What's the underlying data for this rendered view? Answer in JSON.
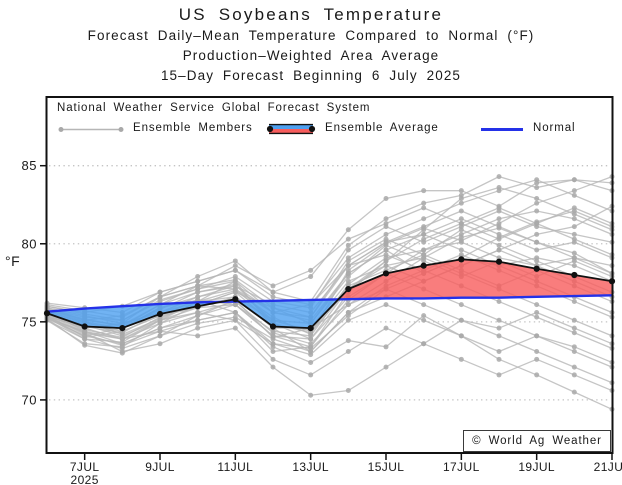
{
  "title": {
    "line1": "US Soybeans Temperature",
    "line2": "Forecast Daily–Mean Temperature Compared to Normal (°F)",
    "line3": "Production–Weighted Area Average",
    "line4": "15–Day Forecast Beginning 6 July 2025"
  },
  "legend": {
    "source_line": "National Weather Service Global Forecast System",
    "items": [
      {
        "label": "Ensemble Members",
        "marker": "gray-line-with-dots"
      },
      {
        "label": "Ensemble Average",
        "marker": "blue-red-band-black-dots"
      },
      {
        "label": "Normal",
        "marker": "blue-line"
      }
    ]
  },
  "watermark": "© World Ag Weather",
  "axes": {
    "y_label": "°F",
    "y_ticks": [
      85,
      80,
      75,
      70
    ],
    "x_ticks": [
      {
        "day": 7,
        "label": "7JUL",
        "sub": "2025"
      },
      {
        "day": 9,
        "label": "9JUL"
      },
      {
        "day": 11,
        "label": "11JUL"
      },
      {
        "day": 13,
        "label": "13JUL"
      },
      {
        "day": 15,
        "label": "15JUL"
      },
      {
        "day": 17,
        "label": "17JUL"
      },
      {
        "day": 19,
        "label": "19JUL"
      },
      {
        "day": 21,
        "label": "21JUL"
      }
    ]
  },
  "chart_data": {
    "type": "line",
    "title": "US Soybeans Temperature",
    "x_days": [
      6,
      7,
      8,
      9,
      10,
      11,
      12,
      13,
      14,
      15,
      16,
      17,
      18,
      19,
      20,
      21
    ],
    "x_unit": "date in July 2025",
    "ylabel": "°F",
    "ylim": [
      66.6,
      89.4
    ],
    "y_gridlines": [
      70,
      75,
      80,
      85
    ],
    "grid": "horizontal-dotted",
    "legend_position": "top-inside",
    "colors": {
      "ensemble_member": "#b6b6b6",
      "member_dot": "#a9a9a9",
      "ensemble_average": "#111111",
      "normal": "#2431e8",
      "fill_above_normal": "#f75d5d",
      "fill_below_normal": "#4da0f0",
      "fill_opacity": 0.8,
      "gridline": "#c4c4c4"
    },
    "series": [
      {
        "name": "Ensemble Average",
        "values": [
          75.55,
          74.7,
          74.6,
          75.5,
          76.0,
          76.45,
          74.7,
          74.6,
          77.1,
          78.1,
          78.6,
          79.0,
          78.85,
          78.4,
          78.0,
          77.6
        ]
      },
      {
        "name": "Normal",
        "values": [
          75.65,
          75.85,
          76.0,
          76.15,
          76.25,
          76.3,
          76.35,
          76.4,
          76.45,
          76.5,
          76.5,
          76.55,
          76.55,
          76.6,
          76.65,
          76.7
        ]
      }
    ],
    "members": [
      [
        75.6,
        75.0,
        74.2,
        75.2,
        76.3,
        77.0,
        75.3,
        74.2,
        78.3,
        80.0,
        81.0,
        80.2,
        81.3,
        82.6,
        83.4,
        84.3
      ],
      [
        75.4,
        74.2,
        73.5,
        74.4,
        75.1,
        75.6,
        73.4,
        72.4,
        73.8,
        73.4,
        75.4,
        74.1,
        72.6,
        71.6,
        70.5,
        69.4
      ],
      [
        75.2,
        73.5,
        73.0,
        74.1,
        75.4,
        76.4,
        74.0,
        74.6,
        76.1,
        77.6,
        79.1,
        80.4,
        81.0,
        80.1,
        79.4,
        78.1
      ],
      [
        76.0,
        75.5,
        75.1,
        76.4,
        77.1,
        77.6,
        75.6,
        75.1,
        78.1,
        79.6,
        78.1,
        79.1,
        80.4,
        81.4,
        82.1,
        81.1
      ],
      [
        75.4,
        74.0,
        74.4,
        75.4,
        76.4,
        75.6,
        73.1,
        73.4,
        76.4,
        78.1,
        77.1,
        76.1,
        75.1,
        74.1,
        73.4,
        72.4
      ],
      [
        75.9,
        75.1,
        74.8,
        76.1,
        76.9,
        77.3,
        76.1,
        75.6,
        78.6,
        80.1,
        80.6,
        81.6,
        80.6,
        79.6,
        80.1,
        79.1
      ],
      [
        75.6,
        74.8,
        74.1,
        75.1,
        75.9,
        76.1,
        74.4,
        74.1,
        77.4,
        79.1,
        79.6,
        80.1,
        79.1,
        78.6,
        77.6,
        76.6
      ],
      [
        75.1,
        73.9,
        73.3,
        74.1,
        74.9,
        75.3,
        73.9,
        73.1,
        75.6,
        76.6,
        77.6,
        78.6,
        79.6,
        80.6,
        81.1,
        82.4
      ],
      [
        76.2,
        75.9,
        75.6,
        76.9,
        77.6,
        78.3,
        76.6,
        76.1,
        79.1,
        80.6,
        81.6,
        82.6,
        83.4,
        84.1,
        83.1,
        82.1
      ],
      [
        75.5,
        74.5,
        74.0,
        75.3,
        76.1,
        76.9,
        74.9,
        74.3,
        77.1,
        78.6,
        79.1,
        78.1,
        77.1,
        76.1,
        75.1,
        74.1
      ],
      [
        75.8,
        75.3,
        75.1,
        76.3,
        77.1,
        77.9,
        76.3,
        75.9,
        79.6,
        81.1,
        80.1,
        81.1,
        82.1,
        81.1,
        80.6,
        80.1
      ],
      [
        75.3,
        74.3,
        73.9,
        74.9,
        75.6,
        76.3,
        74.3,
        73.6,
        76.1,
        77.1,
        78.1,
        79.1,
        78.6,
        77.6,
        76.6,
        75.6
      ],
      [
        75.8,
        75.0,
        74.6,
        75.9,
        76.6,
        77.1,
        75.1,
        74.9,
        78.1,
        79.6,
        80.6,
        79.6,
        78.6,
        79.1,
        78.6,
        77.6
      ],
      [
        75.4,
        74.6,
        74.9,
        75.6,
        76.3,
        76.6,
        74.6,
        74.6,
        77.6,
        78.6,
        77.6,
        78.6,
        79.6,
        78.6,
        79.1,
        78.6
      ],
      [
        75.6,
        74.4,
        73.6,
        74.6,
        75.4,
        76.1,
        74.1,
        73.9,
        76.6,
        78.1,
        79.6,
        80.6,
        81.6,
        82.1,
        81.6,
        80.6
      ],
      [
        76.1,
        75.7,
        75.3,
        76.6,
        77.3,
        77.7,
        75.9,
        75.3,
        78.6,
        80.1,
        81.1,
        82.1,
        81.1,
        80.1,
        79.1,
        78.1
      ],
      [
        75.2,
        74.1,
        73.6,
        74.6,
        75.1,
        75.6,
        73.6,
        73.3,
        75.4,
        77.1,
        76.1,
        75.1,
        74.6,
        75.6,
        74.6,
        73.6
      ],
      [
        76.0,
        75.6,
        76.0,
        76.9,
        77.6,
        78.3,
        76.9,
        76.3,
        79.9,
        81.6,
        82.6,
        83.1,
        84.3,
        83.6,
        84.1,
        83.9
      ],
      [
        75.3,
        74.7,
        74.3,
        75.6,
        76.6,
        77.3,
        75.6,
        75.3,
        78.9,
        80.3,
        79.3,
        80.9,
        79.9,
        78.9,
        77.9,
        76.9
      ],
      [
        75.7,
        74.9,
        74.6,
        75.9,
        76.4,
        76.1,
        74.1,
        73.4,
        76.9,
        78.9,
        80.3,
        81.3,
        80.3,
        81.3,
        82.3,
        81.3
      ],
      [
        75.1,
        73.6,
        73.4,
        74.9,
        76.1,
        76.9,
        75.9,
        74.9,
        77.9,
        79.9,
        78.9,
        77.9,
        78.9,
        77.9,
        78.9,
        77.9
      ],
      [
        75.9,
        75.4,
        74.9,
        76.6,
        77.9,
        78.9,
        76.9,
        77.9,
        80.9,
        82.9,
        83.4,
        83.4,
        82.4,
        83.9,
        84.1,
        83.4
      ],
      [
        75.5,
        74.3,
        73.1,
        73.6,
        74.6,
        75.1,
        72.6,
        71.6,
        73.1,
        74.6,
        73.6,
        72.6,
        71.6,
        72.6,
        71.6,
        70.6
      ],
      [
        75.3,
        73.9,
        73.7,
        75.1,
        76.3,
        77.6,
        74.6,
        73.1,
        75.6,
        77.3,
        78.3,
        77.3,
        76.3,
        75.3,
        74.3,
        73.3
      ],
      [
        75.7,
        75.2,
        74.7,
        76.1,
        77.3,
        78.6,
        77.3,
        78.3,
        80.3,
        81.3,
        82.3,
        81.3,
        82.3,
        81.3,
        80.3,
        79.3
      ],
      [
        75.2,
        74.4,
        73.9,
        74.4,
        74.1,
        74.6,
        72.1,
        70.3,
        70.6,
        72.1,
        73.6,
        75.1,
        74.1,
        73.1,
        72.1,
        71.1
      ],
      [
        75.8,
        75.1,
        75.4,
        76.6,
        77.3,
        77.1,
        75.6,
        76.1,
        78.6,
        79.3,
        78.3,
        79.3,
        78.3,
        77.3,
        76.3,
        75.3
      ],
      [
        75.5,
        74.8,
        74.4,
        75.4,
        75.9,
        76.6,
        75.1,
        74.4,
        77.3,
        78.3,
        79.3,
        78.3,
        77.3,
        78.3,
        77.3,
        76.3
      ],
      [
        75.3,
        74.1,
        74.6,
        75.8,
        76.9,
        77.4,
        74.9,
        73.9,
        77.1,
        78.9,
        80.9,
        82.9,
        83.6,
        82.9,
        81.9,
        80.9
      ],
      [
        75.6,
        74.6,
        73.9,
        75.1,
        75.6,
        75.1,
        73.6,
        72.9,
        75.1,
        76.1,
        75.1,
        74.1,
        73.1,
        74.1,
        73.1,
        72.1
      ]
    ]
  }
}
